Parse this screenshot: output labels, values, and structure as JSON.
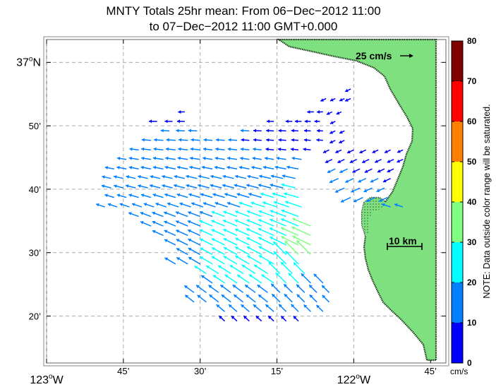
{
  "title": {
    "line1": "MNTY Totals 25hr mean: From 06−Dec−2012 11:00",
    "line2": "to 07−Dec−2012 11:00 GMT+0.000"
  },
  "axes": {
    "lon_labels": [
      {
        "lon": -123.0,
        "text": "123",
        "suffix": "W",
        "big": true
      },
      {
        "lon": -122.75,
        "text": "45’",
        "big": false
      },
      {
        "lon": -122.5,
        "text": "30’",
        "big": false
      },
      {
        "lon": -122.25,
        "text": "15’",
        "big": false
      },
      {
        "lon": -122.0,
        "text": "122",
        "suffix": "W",
        "big": true
      },
      {
        "lon": -121.75,
        "text": "45’",
        "big": false
      }
    ],
    "lat_labels": [
      {
        "lat": 37.0,
        "text": "37",
        "suffix": "N",
        "big": true
      },
      {
        "lat": 36.8333,
        "text": "50’",
        "big": false
      },
      {
        "lat": 36.6667,
        "text": "40’",
        "big": false
      },
      {
        "lat": 36.5,
        "text": "30’",
        "big": false
      },
      {
        "lat": 36.3333,
        "text": "20’",
        "big": false
      }
    ],
    "lon_range": [
      -123.0,
      -121.7
    ],
    "lat_range": [
      36.21,
      37.06
    ],
    "grid": true
  },
  "reference_arrow": {
    "label": "25 cm/s"
  },
  "scale_bar": {
    "label": "10 km"
  },
  "colorbar": {
    "unit": "cm/s",
    "ticks": [
      "0",
      "10",
      "20",
      "30",
      "40",
      "50",
      "60",
      "70",
      "80"
    ],
    "colors": [
      "#0000ff",
      "#0080ff",
      "#00ffff",
      "#80ff80",
      "#ffff00",
      "#ff8000",
      "#ff0000",
      "#800000"
    ],
    "note": "NOTE: Data outside color range will be saturated."
  },
  "colors": {
    "land": "#7fe07f",
    "grid": "#aaaaaa"
  },
  "current_vectors": {
    "units": "cm/s",
    "rows": [
      {
        "lat": 36.93,
        "lons": [
          -122.01
        ],
        "speed": [
          5
        ]
      },
      {
        "lat": 36.905,
        "lons": [
          -122.09,
          -122.06,
          -122.03,
          -122.01
        ],
        "speed": [
          5,
          4,
          4,
          5
        ]
      },
      {
        "lat": 36.87,
        "lons": [
          -122.55,
          -122.13,
          -122.1,
          -122.07,
          -122.04
        ],
        "speed": [
          6,
          6,
          5,
          5,
          4
        ]
      },
      {
        "lat": 36.845,
        "lons": [
          -122.64,
          -122.59,
          -122.55,
          -122.26,
          -122.2,
          -122.17,
          -122.14,
          -122.11,
          -122.06
        ],
        "speed": [
          9,
          8,
          8,
          7,
          6,
          6,
          5,
          4,
          4
        ]
      },
      {
        "lat": 36.82,
        "lons": [
          -122.6,
          -122.55,
          -122.51,
          -122.34,
          -122.3,
          -122.26,
          -122.22,
          -122.18,
          -122.14,
          -122.1,
          -122.06,
          -122.03
        ],
        "speed": [
          10,
          10,
          10,
          10,
          9,
          8,
          8,
          7,
          6,
          5,
          5,
          4
        ]
      },
      {
        "lat": 36.795,
        "lons": [
          -122.66,
          -122.62,
          -122.58,
          -122.54,
          -122.5,
          -122.46,
          -122.42,
          -122.38,
          -122.34,
          -122.3,
          -122.26,
          -122.22,
          -122.18,
          -122.14,
          -122.1,
          -122.06,
          -122.03
        ],
        "speed": [
          11,
          11,
          11,
          11,
          11,
          10,
          10,
          10,
          9,
          9,
          8,
          8,
          7,
          6,
          6,
          5,
          5
        ]
      },
      {
        "lat": 36.77,
        "lons": [
          -122.7,
          -122.66,
          -122.62,
          -122.58,
          -122.54,
          -122.5,
          -122.46,
          -122.42,
          -122.38,
          -122.34,
          -122.3,
          -122.26,
          -122.22,
          -122.18,
          -122.14,
          -122.08,
          -122.04,
          -122.0,
          -121.96,
          -121.92,
          -121.88,
          -121.84
        ],
        "speed": [
          11,
          12,
          12,
          12,
          12,
          12,
          11,
          11,
          11,
          10,
          10,
          9,
          9,
          8,
          8,
          6,
          6,
          7,
          7,
          6,
          6,
          5
        ]
      },
      {
        "lat": 36.745,
        "lons": [
          -122.74,
          -122.7,
          -122.66,
          -122.62,
          -122.58,
          -122.54,
          -122.5,
          -122.46,
          -122.42,
          -122.38,
          -122.34,
          -122.3,
          -122.26,
          -122.22,
          -122.17,
          -122.07,
          -122.03,
          -121.99,
          -121.95,
          -121.91,
          -121.87,
          -121.84
        ],
        "speed": [
          11,
          12,
          12,
          13,
          13,
          13,
          13,
          12,
          12,
          12,
          11,
          11,
          11,
          12,
          12,
          8,
          8,
          8,
          8,
          7,
          7,
          6
        ]
      },
      {
        "lat": 36.72,
        "lons": [
          -122.78,
          -122.74,
          -122.7,
          -122.66,
          -122.62,
          -122.58,
          -122.54,
          -122.5,
          -122.46,
          -122.42,
          -122.38,
          -122.34,
          -122.3,
          -122.26,
          -122.22,
          -122.18,
          -122.06,
          -122.02,
          -121.98,
          -121.94,
          -121.9,
          -121.87
        ],
        "speed": [
          11,
          12,
          12,
          13,
          13,
          14,
          14,
          14,
          14,
          13,
          13,
          13,
          13,
          14,
          15,
          16,
          10,
          10,
          9,
          9,
          8,
          7
        ]
      },
      {
        "lat": 36.695,
        "lons": [
          -122.79,
          -122.75,
          -122.71,
          -122.67,
          -122.63,
          -122.59,
          -122.55,
          -122.51,
          -122.47,
          -122.43,
          -122.39,
          -122.35,
          -122.31,
          -122.27,
          -122.23,
          -122.19,
          -122.05,
          -122.0,
          -121.96,
          -121.92,
          -121.88
        ],
        "speed": [
          11,
          12,
          12,
          13,
          13,
          14,
          14,
          15,
          15,
          15,
          15,
          15,
          15,
          16,
          17,
          19,
          12,
          11,
          10,
          10,
          9
        ]
      },
      {
        "lat": 36.67,
        "lons": [
          -122.79,
          -122.75,
          -122.71,
          -122.67,
          -122.63,
          -122.59,
          -122.55,
          -122.51,
          -122.47,
          -122.43,
          -122.39,
          -122.35,
          -122.31,
          -122.27,
          -122.23,
          -122.19,
          -122.03,
          -121.98,
          -121.94,
          -121.9
        ],
        "speed": [
          12,
          12,
          13,
          13,
          14,
          14,
          15,
          15,
          16,
          16,
          16,
          17,
          17,
          18,
          19,
          21,
          13,
          12,
          11,
          10
        ]
      },
      {
        "lat": 36.645,
        "lons": [
          -122.78,
          -122.74,
          -122.7,
          -122.66,
          -122.62,
          -122.58,
          -122.54,
          -122.5,
          -122.46,
          -122.42,
          -122.38,
          -122.34,
          -122.3,
          -122.26,
          -122.22,
          -122.18,
          -122.01,
          -121.97,
          -121.93,
          -121.89
        ],
        "speed": [
          12,
          12,
          13,
          13,
          14,
          15,
          15,
          16,
          17,
          17,
          18,
          18,
          19,
          20,
          21,
          22,
          14,
          13,
          12,
          11
        ]
      },
      {
        "lat": 36.62,
        "lons": [
          -122.81,
          -122.77,
          -122.73,
          -122.69,
          -122.65,
          -122.61,
          -122.57,
          -122.53,
          -122.49,
          -122.45,
          -122.41,
          -122.37,
          -122.33,
          -122.29,
          -122.25,
          -122.21,
          -122.17,
          -121.88,
          -121.84
        ],
        "speed": [
          11,
          12,
          13,
          13,
          14,
          15,
          16,
          16,
          17,
          18,
          19,
          19,
          20,
          21,
          22,
          24,
          26,
          11,
          10
        ]
      },
      {
        "lat": 36.595,
        "lons": [
          -122.7,
          -122.66,
          -122.62,
          -122.58,
          -122.54,
          -122.5,
          -122.46,
          -122.42,
          -122.38,
          -122.34,
          -122.3,
          -122.26,
          -122.22,
          -122.18
        ],
        "speed": [
          14,
          15,
          16,
          17,
          18,
          18,
          19,
          20,
          21,
          22,
          23,
          24,
          26,
          28
        ]
      },
      {
        "lat": 36.57,
        "lons": [
          -122.66,
          -122.62,
          -122.58,
          -122.54,
          -122.5,
          -122.46,
          -122.42,
          -122.38,
          -122.34,
          -122.3,
          -122.26,
          -122.22,
          -122.18,
          -122.14
        ],
        "speed": [
          15,
          16,
          17,
          18,
          19,
          20,
          21,
          22,
          23,
          24,
          25,
          27,
          29,
          31
        ]
      },
      {
        "lat": 36.545,
        "lons": [
          -122.62,
          -122.58,
          -122.54,
          -122.5,
          -122.46,
          -122.42,
          -122.38,
          -122.34,
          -122.3,
          -122.26,
          -122.22,
          -122.18,
          -122.14
        ],
        "speed": [
          16,
          17,
          18,
          19,
          20,
          21,
          22,
          23,
          25,
          26,
          28,
          30,
          33
        ]
      },
      {
        "lat": 36.52,
        "lons": [
          -122.58,
          -122.54,
          -122.5,
          -122.46,
          -122.42,
          -122.38,
          -122.34,
          -122.3,
          -122.26,
          -122.22,
          -122.18,
          -122.14
        ],
        "speed": [
          17,
          18,
          19,
          20,
          21,
          22,
          23,
          25,
          26,
          28,
          30,
          32
        ]
      },
      {
        "lat": 36.495,
        "lons": [
          -122.54,
          -122.5,
          -122.46,
          -122.42,
          -122.38,
          -122.34,
          -122.3,
          -122.26,
          -122.22,
          -122.18,
          -122.14
        ],
        "speed": [
          18,
          19,
          20,
          21,
          22,
          24,
          25,
          26,
          28,
          30,
          31
        ]
      },
      {
        "lat": 36.47,
        "lons": [
          -122.58,
          -122.54,
          -122.5,
          -122.46,
          -122.42,
          -122.38,
          -122.34,
          -122.3,
          -122.26,
          -122.22,
          -122.18
        ],
        "speed": [
          17,
          18,
          19,
          21,
          22,
          23,
          24,
          25,
          26,
          27,
          28
        ]
      },
      {
        "lat": 36.445,
        "lons": [
          -122.48,
          -122.44,
          -122.4,
          -122.36,
          -122.32,
          -122.28,
          -122.24,
          -122.2,
          -122.16
        ],
        "speed": [
          20,
          21,
          22,
          23,
          24,
          24,
          24,
          24,
          23
        ]
      },
      {
        "lat": 36.42,
        "lons": [
          -122.46,
          -122.42,
          -122.38,
          -122.34,
          -122.3,
          -122.26,
          -122.22,
          -122.18,
          -122.14,
          -122.1
        ],
        "speed": [
          19,
          20,
          21,
          21,
          22,
          22,
          21,
          20,
          19,
          18
        ]
      },
      {
        "lat": 36.395,
        "lons": [
          -122.52,
          -122.48,
          -122.44,
          -122.4,
          -122.36,
          -122.32,
          -122.28,
          -122.24,
          -122.2,
          -122.16,
          -122.12,
          -122.08
        ],
        "speed": [
          16,
          17,
          17,
          18,
          18,
          18,
          18,
          17,
          16,
          15,
          14,
          13
        ]
      },
      {
        "lat": 36.37,
        "lons": [
          -122.52,
          -122.48,
          -122.44,
          -122.4,
          -122.36,
          -122.32,
          -122.28,
          -122.24,
          -122.2,
          -122.16,
          -122.12,
          -122.08
        ],
        "speed": [
          15,
          15,
          16,
          16,
          16,
          16,
          16,
          15,
          15,
          14,
          13,
          12
        ]
      },
      {
        "lat": 36.345,
        "lons": [
          -122.42,
          -122.38,
          -122.34,
          -122.3,
          -122.26,
          -122.22,
          -122.18,
          -122.14,
          -122.1
        ],
        "speed": [
          14,
          14,
          14,
          14,
          14,
          13,
          13,
          12,
          11
        ]
      },
      {
        "lat": 36.32,
        "lons": [
          -122.42,
          -122.38,
          -122.34,
          -122.3,
          -122.26,
          -122.22,
          -122.18
        ],
        "speed": [
          8,
          8,
          8,
          8,
          8,
          7,
          7
        ]
      }
    ]
  }
}
